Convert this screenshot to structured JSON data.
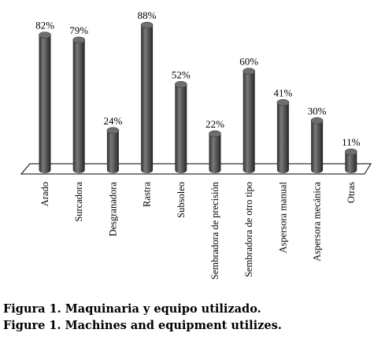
{
  "chart_data": {
    "type": "bar",
    "categories": [
      "Arado",
      "Surcadora",
      "Desgranadora",
      "Rastra",
      "Subsoleo",
      "Sembradora de precisión",
      "Sembradora de otro tipo",
      "Aspersora manual",
      "Aspersora mecánica",
      "Otras"
    ],
    "values": [
      82,
      79,
      24,
      88,
      52,
      22,
      60,
      41,
      30,
      11
    ],
    "value_labels": [
      "82%",
      "79%",
      "24%",
      "88%",
      "52%",
      "22%",
      "60%",
      "41%",
      "30%",
      "11%"
    ],
    "unit": "%",
    "ylim": [
      0,
      100
    ],
    "grid": false,
    "bar_color": "#5a5a5a"
  },
  "caption": {
    "spanish": "Figura 1. Maquinaria y equipo utilizado.",
    "english": "Figure 1. Machines and equipment utilizes."
  }
}
